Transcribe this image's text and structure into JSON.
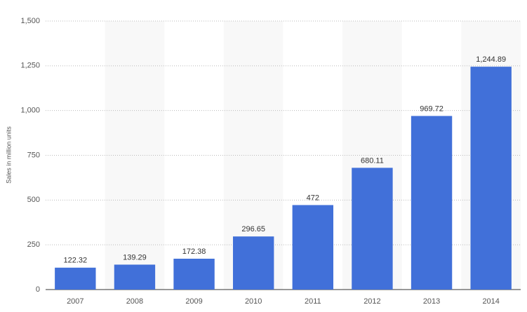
{
  "chart_data": {
    "type": "bar",
    "y_label": "Sales in million units",
    "categories": [
      "2007",
      "2008",
      "2009",
      "2010",
      "2011",
      "2012",
      "2013",
      "2014"
    ],
    "values": [
      122.32,
      139.29,
      172.38,
      296.65,
      472,
      680.11,
      969.72,
      1244.89
    ],
    "value_labels": [
      "122.32",
      "139.29",
      "172.38",
      "296.65",
      "472",
      "680.11",
      "969.72",
      "1,244.89"
    ],
    "color": "#4170d9",
    "ylim": [
      0,
      1500
    ],
    "yticks": [
      0,
      250,
      500,
      750,
      {
        "value": 1000,
        "label": "1,000"
      },
      {
        "value": 1250,
        "label": "1,250"
      },
      {
        "value": 1500,
        "label": "1,500"
      }
    ],
    "grid": true
  }
}
